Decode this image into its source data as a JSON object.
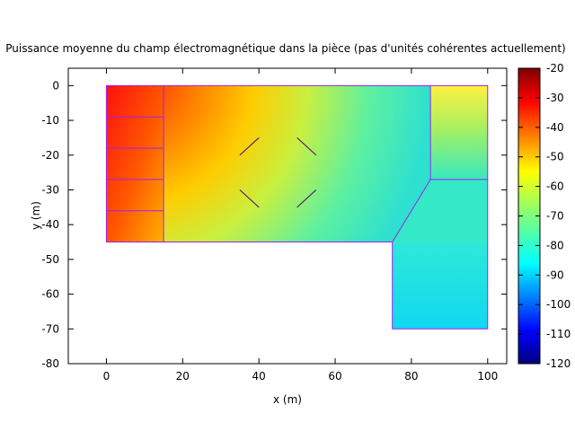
{
  "chart_data": {
    "type": "heatmap",
    "title": "Puissance moyenne du champ électromagnétique dans la pièce (pas d'unités cohérentes actuellement)",
    "xlabel": "x (m)",
    "ylabel": "y (m)",
    "xlim": [
      -10,
      105
    ],
    "ylim": [
      -80,
      5
    ],
    "xticks": [
      0,
      20,
      40,
      60,
      80,
      100
    ],
    "yticks": [
      0,
      -10,
      -20,
      -30,
      -40,
      -50,
      -60,
      -70,
      -80
    ],
    "colorbar": {
      "colormap": "jet",
      "range": [
        -120,
        -20
      ],
      "ticks": [
        -20,
        -30,
        -40,
        -50,
        -60,
        -70,
        -80,
        -90,
        -100,
        -110,
        -120
      ]
    },
    "room_outline": [
      [
        0,
        0
      ],
      [
        100,
        0
      ],
      [
        100,
        -70
      ],
      [
        75,
        -70
      ],
      [
        75,
        -45
      ],
      [
        0,
        -45
      ]
    ],
    "walls": [
      [
        [
          15,
          0
        ],
        [
          15,
          -45
        ]
      ],
      [
        [
          0,
          -9
        ],
        [
          15,
          -9
        ]
      ],
      [
        [
          0,
          -18
        ],
        [
          15,
          -18
        ]
      ],
      [
        [
          0,
          -27
        ],
        [
          15,
          -27
        ]
      ],
      [
        [
          0,
          -36
        ],
        [
          15,
          -36
        ]
      ],
      [
        [
          85,
          0
        ],
        [
          85,
          -27
        ]
      ],
      [
        [
          85,
          -27
        ],
        [
          100,
          -27
        ]
      ],
      [
        [
          75,
          -45
        ],
        [
          85,
          -27
        ]
      ]
    ],
    "obstacles": [
      [
        [
          35,
          -20
        ],
        [
          40,
          -15
        ]
      ],
      [
        [
          50,
          -15
        ],
        [
          55,
          -20
        ]
      ],
      [
        [
          35,
          -30
        ],
        [
          40,
          -35
        ]
      ],
      [
        [
          50,
          -35
        ],
        [
          55,
          -30
        ]
      ]
    ],
    "field_regions": [
      {
        "region": "rooms x 0-15",
        "level_dB": -35
      },
      {
        "region": "main hall near y 0",
        "level_dB": -42
      },
      {
        "region": "main hall centre",
        "level_dB": -62
      },
      {
        "region": "main hall far corner",
        "level_dB": -70
      },
      {
        "region": "room x 85-100, y 0 to -27",
        "level_dB": -70
      },
      {
        "region": "annex x 75-100, y -45 to -70",
        "level_dB": -85
      }
    ],
    "grid": false,
    "legend": "none"
  },
  "colors": {
    "outline": "#a020f0",
    "walls": "#a020f0",
    "obstacles": "#4b0082"
  }
}
